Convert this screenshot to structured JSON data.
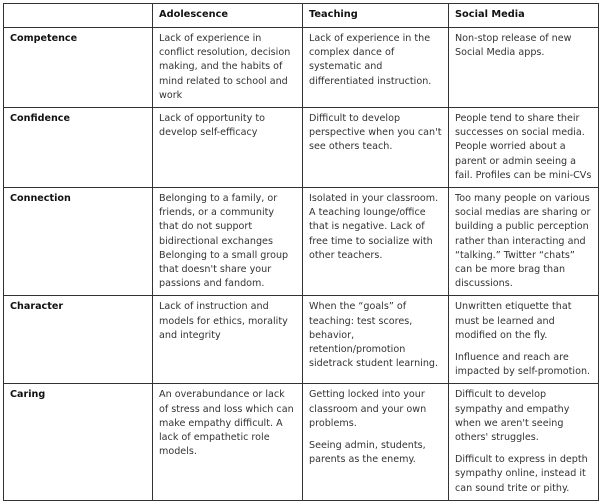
{
  "table": {
    "headers": [
      "",
      "Adolescence",
      "Teaching",
      "Social Media"
    ],
    "rows": [
      {
        "label": "Competence",
        "cells": [
          [
            "Lack of experience in conflict resolution,  decision making, and the habits of mind related to school and work"
          ],
          [
            "Lack of experience in the complex dance of systematic and differentiated instruction."
          ],
          [
            "Non-stop release of new Social Media apps."
          ]
        ]
      },
      {
        "label": "Confidence",
        "cells": [
          [
            "Lack of opportunity to develop self-efficacy"
          ],
          [
            "Difficult to develop perspective when you can't see others teach."
          ],
          [
            "People tend to share their successes on social media. People worried about a parent or admin seeing a fail. Profiles can be mini-CVs"
          ]
        ]
      },
      {
        "label": "Connection",
        "cells": [
          [
            "Belonging to a family, or friends, or a community that do not support bidirectional exchanges Belonging to a small group that doesn't share your passions and fandom."
          ],
          [
            "Isolated in your classroom. A teaching lounge/office that is negative. Lack of free time to socialize with other teachers."
          ],
          [
            "Too many people on various social medias are sharing or building a public perception rather than interacting and “talking.” Twitter “chats” can be more brag than discussions."
          ]
        ]
      },
      {
        "label": "Character",
        "cells": [
          [
            "Lack of instruction and models for ethics, morality and integrity"
          ],
          [
            "When the “goals” of teaching: test scores, behavior, retention/promotion sidetrack student learning."
          ],
          [
            "Unwritten etiquette that must be learned and modified on the fly.",
            "Influence and reach are impacted by self-promotion."
          ]
        ]
      },
      {
        "label": "Caring",
        "cells": [
          [
            "An overabundance or lack of stress and loss which can make empathy difficult. A lack of empathetic role models."
          ],
          [
            "Getting locked into your classroom and your own problems.",
            "Seeing admin, students, parents as the enemy."
          ],
          [
            "Difficult to develop sympathy and empathy when we aren't seeing others' struggles.",
            "Difficult to express in depth sympathy online, instead it can sound trite or pithy."
          ]
        ]
      }
    ]
  }
}
